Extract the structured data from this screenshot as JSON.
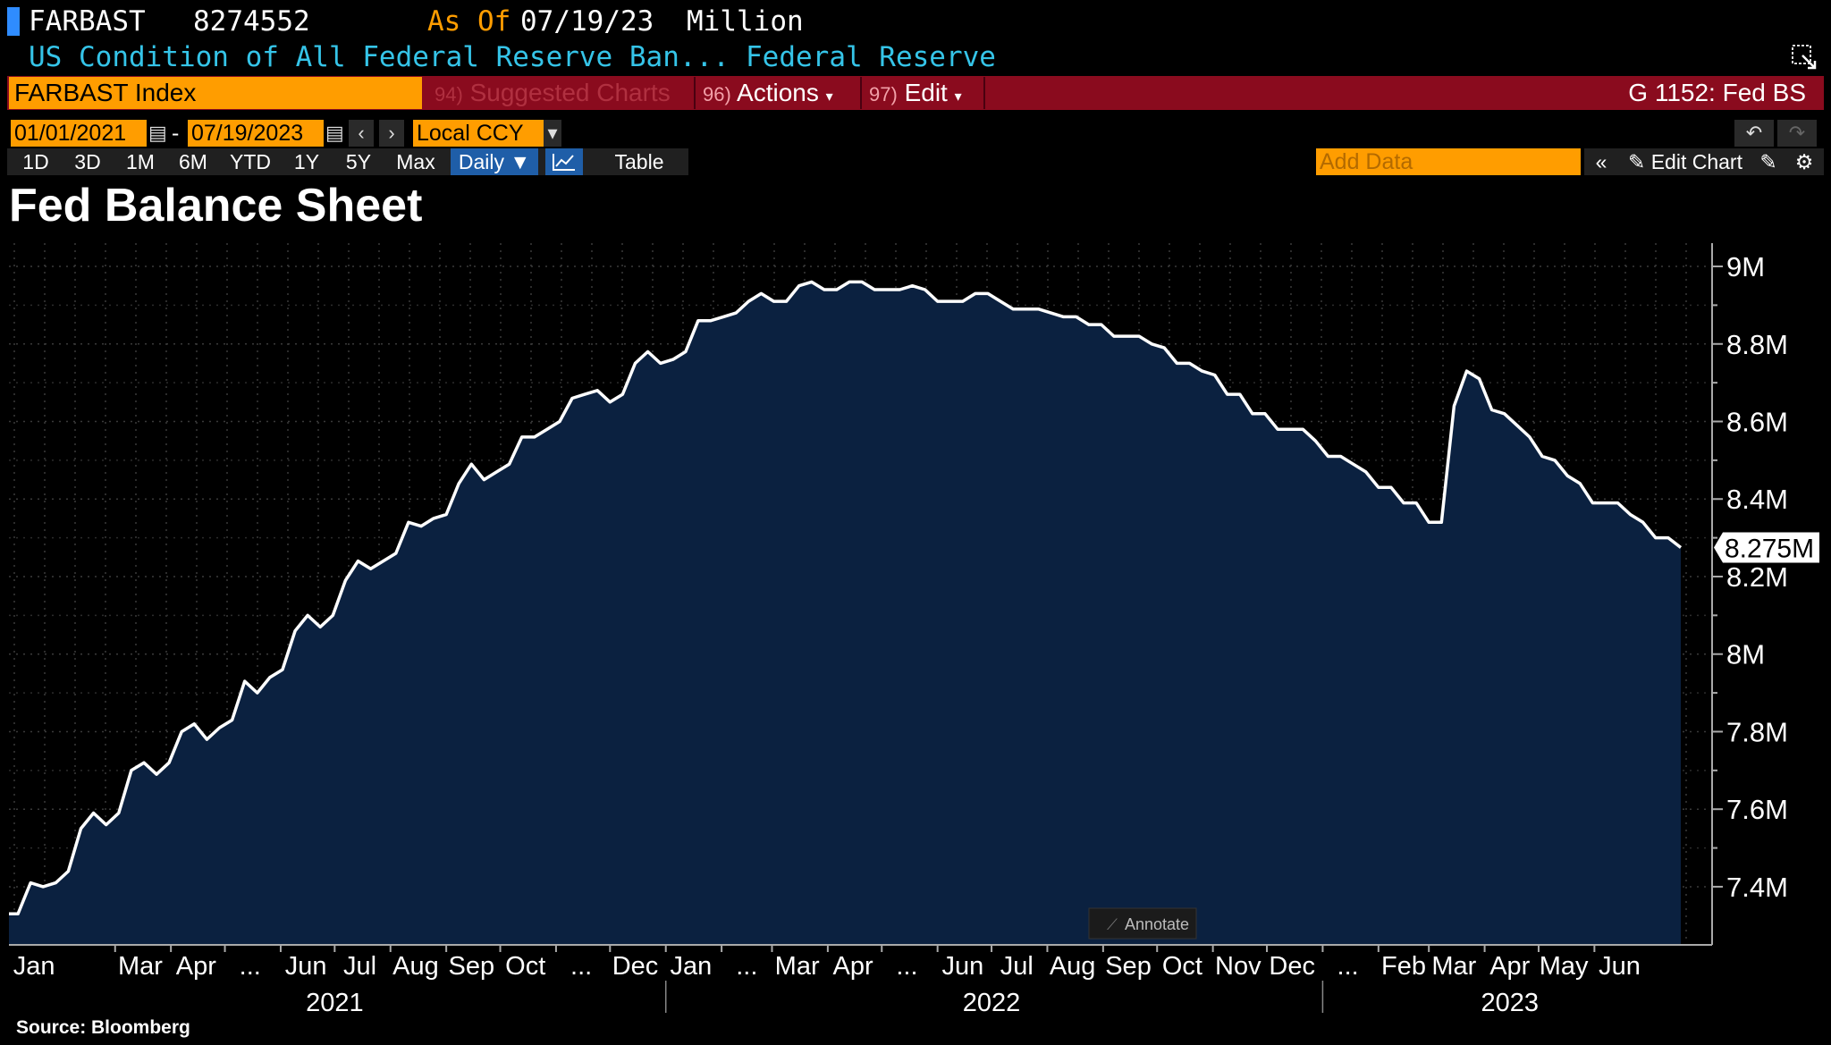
{
  "header": {
    "ticker": "FARBAST",
    "value": "8274552",
    "as_of_label": "As Of",
    "as_of_date": "07/19/23",
    "unit": "Million",
    "description": "US Condition of All Federal Reserve Ban...",
    "source_org": "Federal Reserve"
  },
  "toolbar": {
    "security": "FARBAST Index",
    "suggested_num": "94)",
    "suggested_label": "Suggested Charts",
    "actions_num": "96)",
    "actions_label": "Actions",
    "edit_num": "97)",
    "edit_label": "Edit",
    "chart_name": "G 1152: Fed BS",
    "accent_color": "#8a0b1e",
    "highlight_color": "#ff9d00"
  },
  "dates": {
    "start": "01/01/2021",
    "end": "07/19/2023",
    "dash": "-",
    "currency": "Local CCY"
  },
  "ranges": [
    "1D",
    "3D",
    "1M",
    "6M",
    "YTD",
    "1Y",
    "5Y",
    "Max"
  ],
  "frequency": "Daily",
  "table_label": "Table",
  "add_data_placeholder": "Add Data",
  "edit_chart_label": "Edit Chart",
  "annotate_label": "Annotate",
  "footer": {
    "source": "Source: Bloomberg"
  },
  "chart_data": {
    "type": "area",
    "title": "Fed Balance Sheet",
    "ylabel": "",
    "ylim": [
      7.25,
      9.06
    ],
    "y_ticks": [
      7.4,
      7.6,
      7.8,
      8.0,
      8.2,
      8.4,
      8.6,
      8.8,
      9.0
    ],
    "y_tick_labels": [
      "7.4M",
      "7.6M",
      "7.8M",
      "8M",
      "8.2M",
      "8.4M",
      "8.6M",
      "8.8M",
      "9M"
    ],
    "x_range": [
      "2021-01-01",
      "2023-07-19"
    ],
    "month_labels": [
      {
        "date": "2021-01-15",
        "label": "Jan"
      },
      {
        "date": "2021-03-15",
        "label": "Mar"
      },
      {
        "date": "2021-04-15",
        "label": "Apr"
      },
      {
        "date": "2021-05-15",
        "label": "..."
      },
      {
        "date": "2021-06-15",
        "label": "Jun"
      },
      {
        "date": "2021-07-15",
        "label": "Jul"
      },
      {
        "date": "2021-08-15",
        "label": "Aug"
      },
      {
        "date": "2021-09-15",
        "label": "Sep"
      },
      {
        "date": "2021-10-15",
        "label": "Oct"
      },
      {
        "date": "2021-11-15",
        "label": "..."
      },
      {
        "date": "2021-12-15",
        "label": "Dec"
      },
      {
        "date": "2022-01-15",
        "label": "Jan"
      },
      {
        "date": "2022-02-15",
        "label": "..."
      },
      {
        "date": "2022-03-15",
        "label": "Mar"
      },
      {
        "date": "2022-04-15",
        "label": "Apr"
      },
      {
        "date": "2022-05-15",
        "label": "..."
      },
      {
        "date": "2022-06-15",
        "label": "Jun"
      },
      {
        "date": "2022-07-15",
        "label": "Jul"
      },
      {
        "date": "2022-08-15",
        "label": "Aug"
      },
      {
        "date": "2022-09-15",
        "label": "Sep"
      },
      {
        "date": "2022-10-15",
        "label": "Oct"
      },
      {
        "date": "2022-11-15",
        "label": "Nov"
      },
      {
        "date": "2022-12-15",
        "label": "Dec"
      },
      {
        "date": "2023-01-15",
        "label": "..."
      },
      {
        "date": "2023-02-15",
        "label": "Feb"
      },
      {
        "date": "2023-03-15",
        "label": "Mar"
      },
      {
        "date": "2023-04-15",
        "label": "Apr"
      },
      {
        "date": "2023-05-15",
        "label": "May"
      },
      {
        "date": "2023-06-15",
        "label": "Jun"
      }
    ],
    "year_labels": [
      {
        "date": "2021-07-01",
        "label": "2021"
      },
      {
        "date": "2022-07-01",
        "label": "2022"
      },
      {
        "date": "2023-04-15",
        "label": "2023"
      }
    ],
    "year_separators": [
      "2022-01-01",
      "2023-01-01"
    ],
    "last_value_label": "8.275M",
    "line_color": "#ffffff",
    "fill_color": "#0b2140",
    "grid": true,
    "points": [
      [
        "2021-01-01",
        7.33
      ],
      [
        "2021-01-06",
        7.33
      ],
      [
        "2021-01-13",
        7.41
      ],
      [
        "2021-01-20",
        7.4
      ],
      [
        "2021-01-27",
        7.41
      ],
      [
        "2021-02-03",
        7.44
      ],
      [
        "2021-02-10",
        7.55
      ],
      [
        "2021-02-17",
        7.59
      ],
      [
        "2021-02-24",
        7.56
      ],
      [
        "2021-03-03",
        7.59
      ],
      [
        "2021-03-10",
        7.7
      ],
      [
        "2021-03-17",
        7.72
      ],
      [
        "2021-03-24",
        7.69
      ],
      [
        "2021-03-31",
        7.72
      ],
      [
        "2021-04-07",
        7.8
      ],
      [
        "2021-04-14",
        7.82
      ],
      [
        "2021-04-21",
        7.78
      ],
      [
        "2021-04-28",
        7.81
      ],
      [
        "2021-05-05",
        7.83
      ],
      [
        "2021-05-12",
        7.93
      ],
      [
        "2021-05-19",
        7.9
      ],
      [
        "2021-05-26",
        7.94
      ],
      [
        "2021-06-02",
        7.96
      ],
      [
        "2021-06-09",
        8.06
      ],
      [
        "2021-06-16",
        8.1
      ],
      [
        "2021-06-23",
        8.07
      ],
      [
        "2021-06-30",
        8.1
      ],
      [
        "2021-07-07",
        8.19
      ],
      [
        "2021-07-14",
        8.24
      ],
      [
        "2021-07-21",
        8.22
      ],
      [
        "2021-07-28",
        8.24
      ],
      [
        "2021-08-04",
        8.26
      ],
      [
        "2021-08-11",
        8.34
      ],
      [
        "2021-08-18",
        8.33
      ],
      [
        "2021-08-25",
        8.35
      ],
      [
        "2021-09-01",
        8.36
      ],
      [
        "2021-09-08",
        8.44
      ],
      [
        "2021-09-15",
        8.49
      ],
      [
        "2021-09-22",
        8.45
      ],
      [
        "2021-09-29",
        8.47
      ],
      [
        "2021-10-06",
        8.49
      ],
      [
        "2021-10-13",
        8.56
      ],
      [
        "2021-10-20",
        8.56
      ],
      [
        "2021-10-27",
        8.58
      ],
      [
        "2021-11-03",
        8.6
      ],
      [
        "2021-11-10",
        8.66
      ],
      [
        "2021-11-17",
        8.67
      ],
      [
        "2021-11-24",
        8.68
      ],
      [
        "2021-12-01",
        8.65
      ],
      [
        "2021-12-08",
        8.67
      ],
      [
        "2021-12-15",
        8.75
      ],
      [
        "2021-12-22",
        8.78
      ],
      [
        "2021-12-29",
        8.75
      ],
      [
        "2022-01-05",
        8.76
      ],
      [
        "2022-01-12",
        8.78
      ],
      [
        "2022-01-19",
        8.86
      ],
      [
        "2022-01-26",
        8.86
      ],
      [
        "2022-02-02",
        8.87
      ],
      [
        "2022-02-09",
        8.88
      ],
      [
        "2022-02-16",
        8.91
      ],
      [
        "2022-02-23",
        8.93
      ],
      [
        "2022-03-02",
        8.91
      ],
      [
        "2022-03-09",
        8.91
      ],
      [
        "2022-03-16",
        8.95
      ],
      [
        "2022-03-23",
        8.96
      ],
      [
        "2022-03-30",
        8.94
      ],
      [
        "2022-04-06",
        8.94
      ],
      [
        "2022-04-13",
        8.96
      ],
      [
        "2022-04-20",
        8.96
      ],
      [
        "2022-04-27",
        8.94
      ],
      [
        "2022-05-04",
        8.94
      ],
      [
        "2022-05-11",
        8.94
      ],
      [
        "2022-05-18",
        8.95
      ],
      [
        "2022-05-25",
        8.94
      ],
      [
        "2022-06-01",
        8.91
      ],
      [
        "2022-06-08",
        8.91
      ],
      [
        "2022-06-15",
        8.91
      ],
      [
        "2022-06-22",
        8.93
      ],
      [
        "2022-06-29",
        8.93
      ],
      [
        "2022-07-06",
        8.91
      ],
      [
        "2022-07-13",
        8.89
      ],
      [
        "2022-07-20",
        8.89
      ],
      [
        "2022-07-27",
        8.89
      ],
      [
        "2022-08-03",
        8.88
      ],
      [
        "2022-08-10",
        8.87
      ],
      [
        "2022-08-17",
        8.87
      ],
      [
        "2022-08-24",
        8.85
      ],
      [
        "2022-08-31",
        8.85
      ],
      [
        "2022-09-07",
        8.82
      ],
      [
        "2022-09-14",
        8.82
      ],
      [
        "2022-09-21",
        8.82
      ],
      [
        "2022-09-28",
        8.8
      ],
      [
        "2022-10-05",
        8.79
      ],
      [
        "2022-10-12",
        8.75
      ],
      [
        "2022-10-19",
        8.75
      ],
      [
        "2022-10-26",
        8.73
      ],
      [
        "2022-11-02",
        8.72
      ],
      [
        "2022-11-09",
        8.67
      ],
      [
        "2022-11-16",
        8.67
      ],
      [
        "2022-11-23",
        8.62
      ],
      [
        "2022-11-30",
        8.62
      ],
      [
        "2022-12-07",
        8.58
      ],
      [
        "2022-12-14",
        8.58
      ],
      [
        "2022-12-21",
        8.58
      ],
      [
        "2022-12-28",
        8.55
      ],
      [
        "2023-01-04",
        8.51
      ],
      [
        "2023-01-11",
        8.51
      ],
      [
        "2023-01-18",
        8.49
      ],
      [
        "2023-01-25",
        8.47
      ],
      [
        "2023-02-01",
        8.43
      ],
      [
        "2023-02-08",
        8.43
      ],
      [
        "2023-02-15",
        8.39
      ],
      [
        "2023-02-22",
        8.39
      ],
      [
        "2023-03-01",
        8.34
      ],
      [
        "2023-03-08",
        8.34
      ],
      [
        "2023-03-15",
        8.64
      ],
      [
        "2023-03-22",
        8.73
      ],
      [
        "2023-03-29",
        8.71
      ],
      [
        "2023-04-05",
        8.63
      ],
      [
        "2023-04-12",
        8.62
      ],
      [
        "2023-04-19",
        8.59
      ],
      [
        "2023-04-26",
        8.56
      ],
      [
        "2023-05-03",
        8.51
      ],
      [
        "2023-05-10",
        8.5
      ],
      [
        "2023-05-17",
        8.46
      ],
      [
        "2023-05-24",
        8.44
      ],
      [
        "2023-05-31",
        8.39
      ],
      [
        "2023-06-07",
        8.39
      ],
      [
        "2023-06-14",
        8.39
      ],
      [
        "2023-06-21",
        8.36
      ],
      [
        "2023-06-28",
        8.34
      ],
      [
        "2023-07-05",
        8.3
      ],
      [
        "2023-07-12",
        8.3
      ],
      [
        "2023-07-19",
        8.275
      ]
    ]
  }
}
